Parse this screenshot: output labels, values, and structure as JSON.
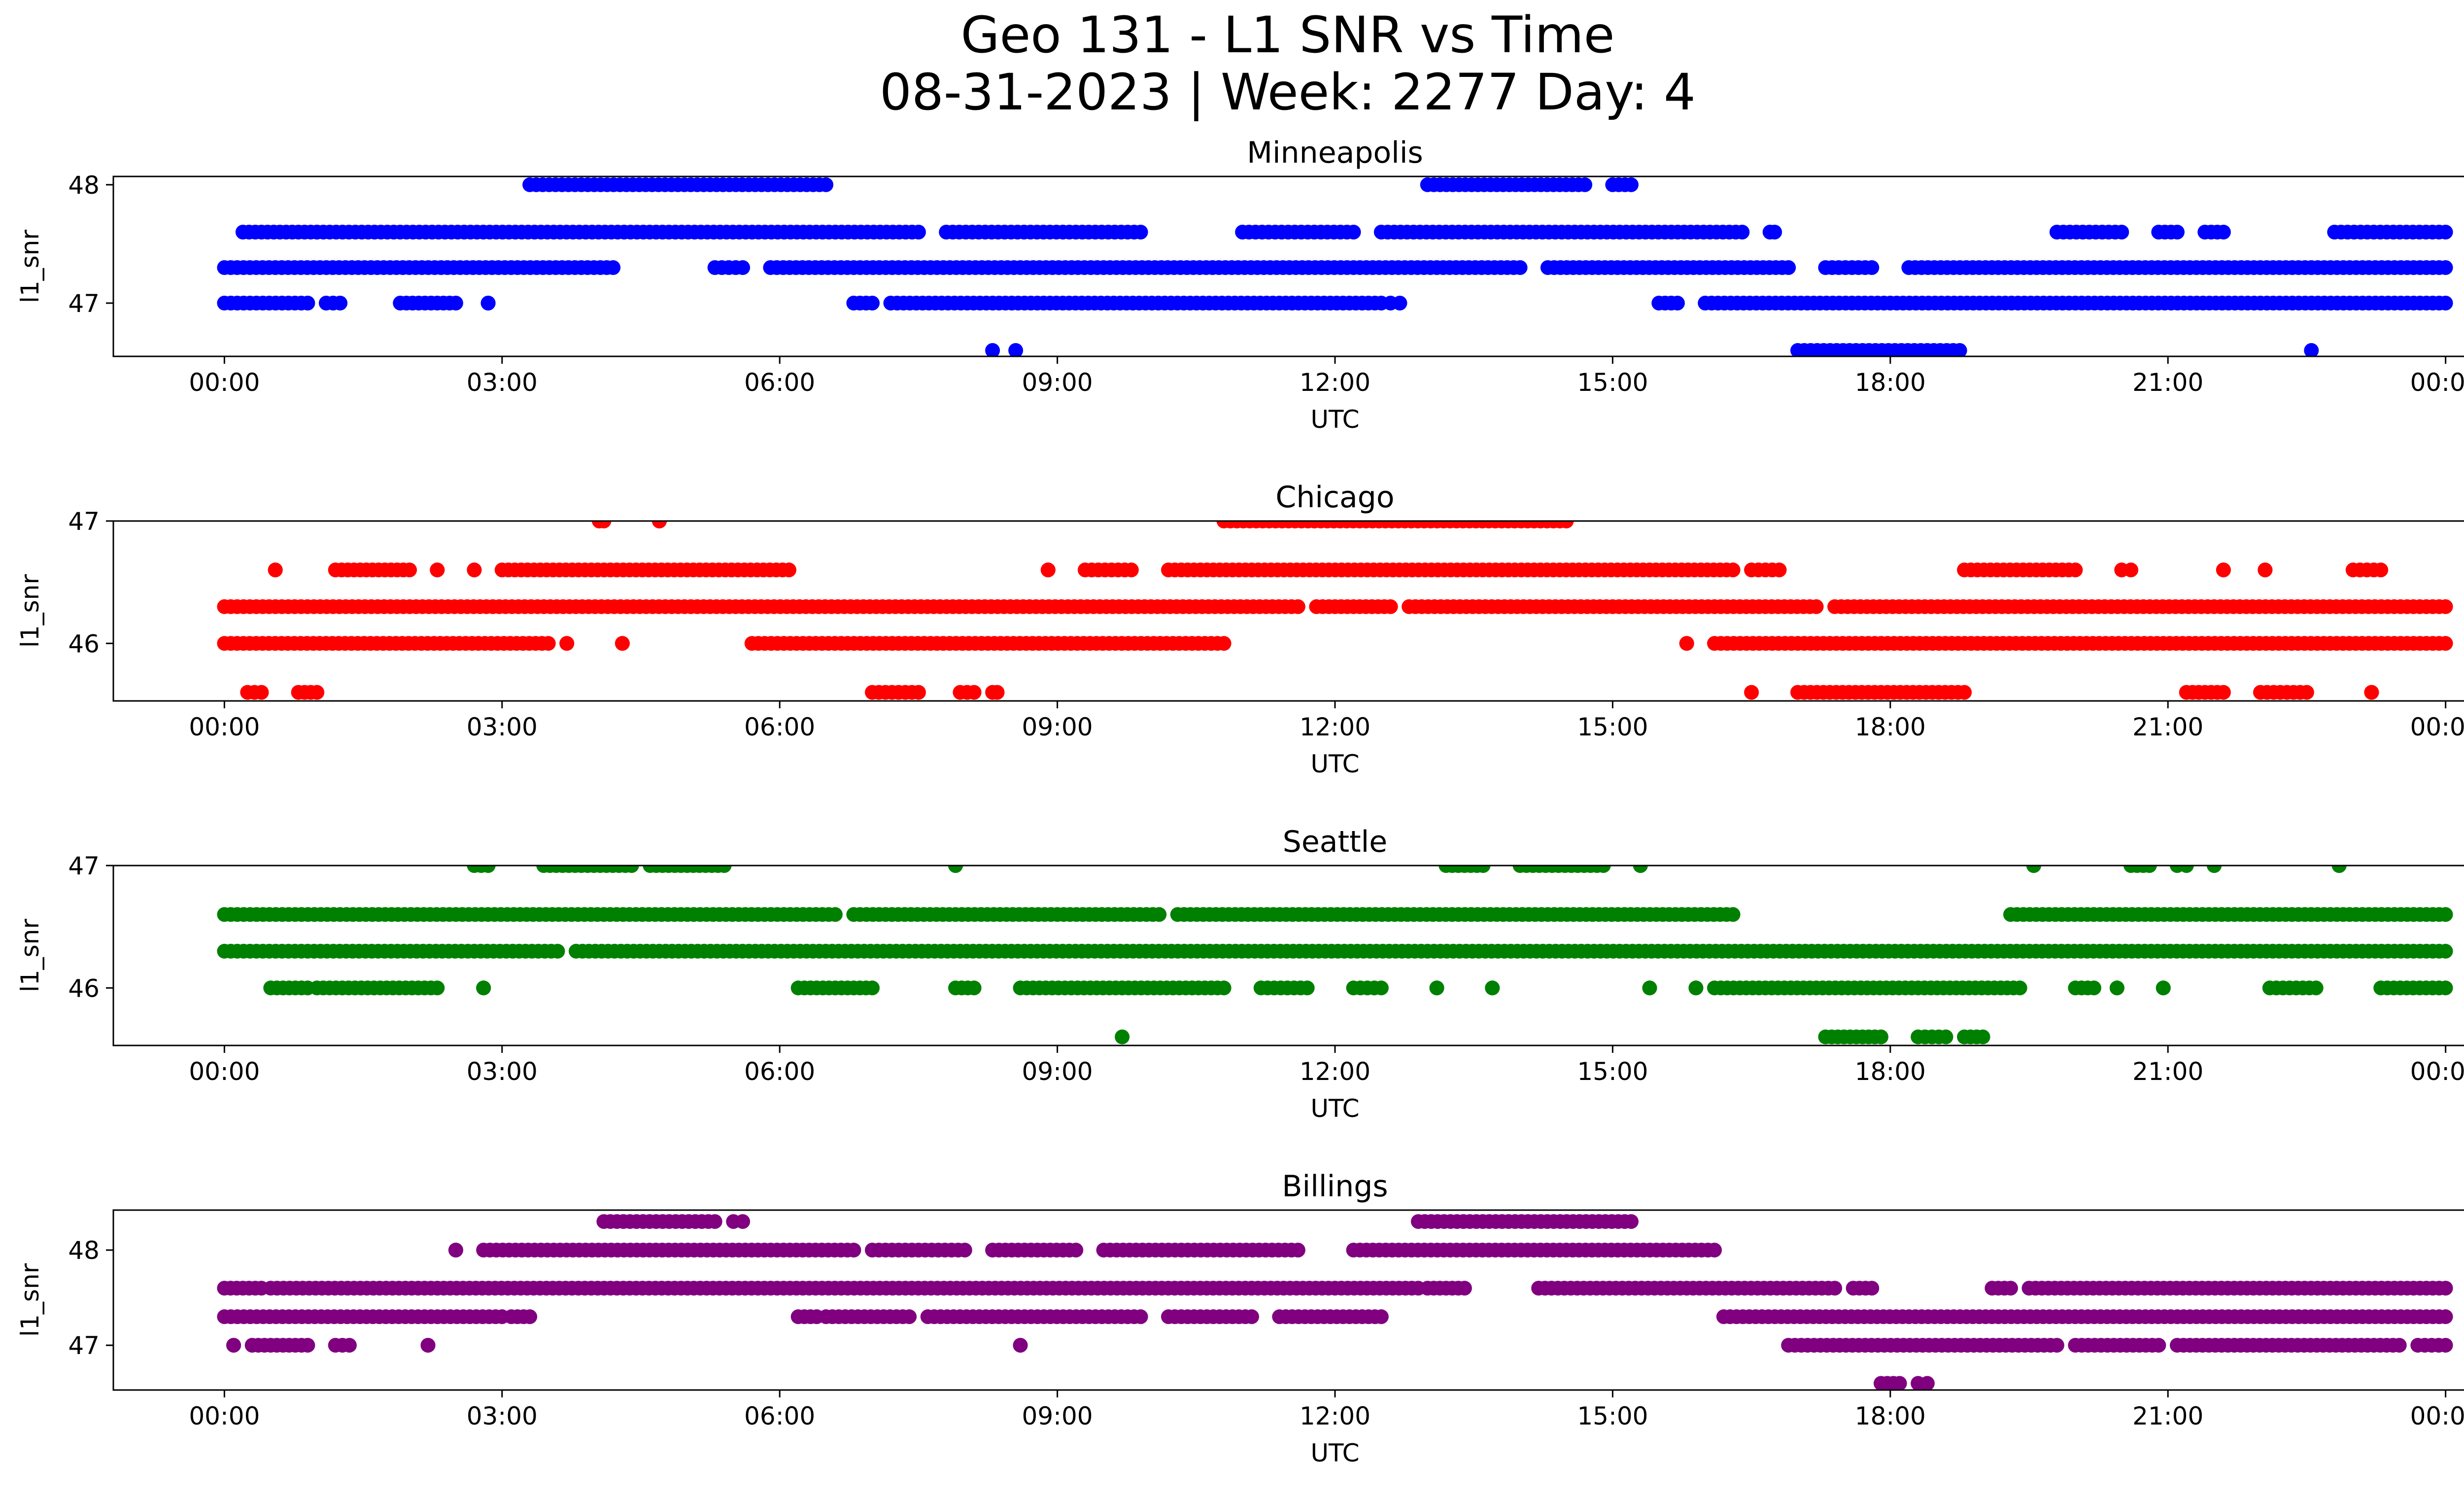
{
  "figure": {
    "title_line1": "Geo 131 - L1 SNR vs Time",
    "title_line2": "08-31-2023 | Week: 2277 Day: 4"
  },
  "chart_data": [
    {
      "type": "scatter",
      "title": "Minneapolis",
      "xlabel": "UTC",
      "ylabel": "l1_snr",
      "color": "#0000ff",
      "xlim_hours": [
        -1.2,
        25.2
      ],
      "ylim": [
        46.55,
        48.07
      ],
      "xticks": [
        {
          "h": 0,
          "label": "00:00"
        },
        {
          "h": 3,
          "label": "03:00"
        },
        {
          "h": 6,
          "label": "06:00"
        },
        {
          "h": 9,
          "label": "09:00"
        },
        {
          "h": 12,
          "label": "12:00"
        },
        {
          "h": 15,
          "label": "15:00"
        },
        {
          "h": 18,
          "label": "18:00"
        },
        {
          "h": 21,
          "label": "21:00"
        },
        {
          "h": 24,
          "label": "00:00"
        }
      ],
      "yticks": [
        {
          "v": 47,
          "label": "47"
        },
        {
          "v": 48,
          "label": "48"
        }
      ],
      "segments": [
        {
          "y": 48.0,
          "start": 3.3,
          "end": 6.5
        },
        {
          "y": 48.0,
          "start": 13.0,
          "end": 14.7
        },
        {
          "y": 48.0,
          "start": 15.0,
          "end": 15.2
        },
        {
          "y": 47.6,
          "start": 0.2,
          "end": 1.0
        },
        {
          "y": 47.6,
          "start": 1.0,
          "end": 7.5
        },
        {
          "y": 47.6,
          "start": 7.8,
          "end": 9.9
        },
        {
          "y": 47.6,
          "start": 11.0,
          "end": 12.2
        },
        {
          "y": 47.6,
          "start": 12.5,
          "end": 16.4
        },
        {
          "y": 47.6,
          "start": 16.7,
          "end": 16.75
        },
        {
          "y": 47.6,
          "start": 19.8,
          "end": 20.5
        },
        {
          "y": 47.6,
          "start": 20.9,
          "end": 21.1
        },
        {
          "y": 47.6,
          "start": 21.4,
          "end": 21.6
        },
        {
          "y": 47.6,
          "start": 22.8,
          "end": 24.0
        },
        {
          "y": 47.3,
          "start": 0.0,
          "end": 4.2
        },
        {
          "y": 47.3,
          "start": 5.3,
          "end": 5.6
        },
        {
          "y": 47.3,
          "start": 5.9,
          "end": 14.0
        },
        {
          "y": 47.3,
          "start": 14.3,
          "end": 16.9
        },
        {
          "y": 47.3,
          "start": 17.3,
          "end": 17.8
        },
        {
          "y": 47.3,
          "start": 18.2,
          "end": 24.0
        },
        {
          "y": 47.0,
          "start": 0.0,
          "end": 0.9
        },
        {
          "y": 47.0,
          "start": 1.1,
          "end": 1.25
        },
        {
          "y": 47.0,
          "start": 1.9,
          "end": 2.5
        },
        {
          "y": 47.0,
          "start": 2.85,
          "end": 2.85
        },
        {
          "y": 47.0,
          "start": 6.8,
          "end": 7.0
        },
        {
          "y": 47.0,
          "start": 7.2,
          "end": 12.5
        },
        {
          "y": 47.0,
          "start": 12.6,
          "end": 12.7
        },
        {
          "y": 47.0,
          "start": 15.5,
          "end": 15.7
        },
        {
          "y": 47.0,
          "start": 16.0,
          "end": 24.0
        },
        {
          "y": 46.6,
          "start": 17.0,
          "end": 18.75
        }
      ],
      "points": [
        {
          "x": 8.3,
          "y": 46.6
        },
        {
          "x": 8.55,
          "y": 46.6
        },
        {
          "x": 22.55,
          "y": 46.6
        }
      ]
    },
    {
      "type": "scatter",
      "title": "Chicago",
      "xlabel": "UTC",
      "ylabel": "l1_snr",
      "color": "#ff0000",
      "xlim_hours": [
        -1.2,
        25.2
      ],
      "ylim": [
        45.53,
        47.0
      ],
      "xticks": [
        {
          "h": 0,
          "label": "00:00"
        },
        {
          "h": 3,
          "label": "03:00"
        },
        {
          "h": 6,
          "label": "06:00"
        },
        {
          "h": 9,
          "label": "09:00"
        },
        {
          "h": 12,
          "label": "12:00"
        },
        {
          "h": 15,
          "label": "15:00"
        },
        {
          "h": 18,
          "label": "18:00"
        },
        {
          "h": 21,
          "label": "21:00"
        },
        {
          "h": 24,
          "label": "00:00"
        }
      ],
      "yticks": [
        {
          "v": 46,
          "label": "46"
        },
        {
          "v": 47,
          "label": "47"
        }
      ],
      "segments": [
        {
          "y": 47.0,
          "start": 4.05,
          "end": 4.1
        },
        {
          "y": 47.0,
          "start": 4.7,
          "end": 4.7
        },
        {
          "y": 47.0,
          "start": 10.8,
          "end": 14.5
        },
        {
          "y": 46.6,
          "start": 0.55,
          "end": 0.55
        },
        {
          "y": 46.6,
          "start": 1.2,
          "end": 2.0
        },
        {
          "y": 46.6,
          "start": 2.3,
          "end": 2.3
        },
        {
          "y": 46.6,
          "start": 2.7,
          "end": 2.7
        },
        {
          "y": 46.6,
          "start": 3.0,
          "end": 6.1
        },
        {
          "y": 46.6,
          "start": 8.9,
          "end": 8.9
        },
        {
          "y": 46.6,
          "start": 9.3,
          "end": 9.8
        },
        {
          "y": 46.6,
          "start": 10.2,
          "end": 16.3
        },
        {
          "y": 46.6,
          "start": 16.5,
          "end": 16.8
        },
        {
          "y": 46.6,
          "start": 18.8,
          "end": 20.0
        },
        {
          "y": 46.6,
          "start": 20.5,
          "end": 20.6
        },
        {
          "y": 46.6,
          "start": 21.6,
          "end": 21.6
        },
        {
          "y": 46.6,
          "start": 22.05,
          "end": 22.05
        },
        {
          "y": 46.6,
          "start": 23.0,
          "end": 23.3
        },
        {
          "y": 46.3,
          "start": 0.0,
          "end": 11.6
        },
        {
          "y": 46.3,
          "start": 11.8,
          "end": 12.6
        },
        {
          "y": 46.3,
          "start": 12.8,
          "end": 17.2
        },
        {
          "y": 46.3,
          "start": 17.4,
          "end": 24.0
        },
        {
          "y": 46.0,
          "start": 0.0,
          "end": 3.5
        },
        {
          "y": 46.0,
          "start": 3.7,
          "end": 3.7
        },
        {
          "y": 46.0,
          "start": 4.3,
          "end": 4.3
        },
        {
          "y": 46.0,
          "start": 5.7,
          "end": 10.8
        },
        {
          "y": 46.0,
          "start": 15.8,
          "end": 15.8
        },
        {
          "y": 46.0,
          "start": 16.1,
          "end": 24.0
        },
        {
          "y": 45.6,
          "start": 0.25,
          "end": 0.4
        },
        {
          "y": 45.6,
          "start": 0.8,
          "end": 1.0
        },
        {
          "y": 45.6,
          "start": 7.0,
          "end": 7.5
        },
        {
          "y": 45.6,
          "start": 7.95,
          "end": 8.1
        },
        {
          "y": 45.6,
          "start": 8.3,
          "end": 8.35
        },
        {
          "y": 45.6,
          "start": 17.0,
          "end": 18.8
        },
        {
          "y": 45.6,
          "start": 21.2,
          "end": 21.6
        },
        {
          "y": 45.6,
          "start": 22.0,
          "end": 22.5
        },
        {
          "y": 45.6,
          "start": 23.2,
          "end": 23.2
        }
      ],
      "points": [
        {
          "x": 16.5,
          "y": 45.6
        }
      ]
    },
    {
      "type": "scatter",
      "title": "Seattle",
      "xlabel": "UTC",
      "ylabel": "l1_snr",
      "color": "#008000",
      "xlim_hours": [
        -1.2,
        25.2
      ],
      "ylim": [
        45.53,
        47.0
      ],
      "xticks": [
        {
          "h": 0,
          "label": "00:00"
        },
        {
          "h": 3,
          "label": "03:00"
        },
        {
          "h": 6,
          "label": "06:00"
        },
        {
          "h": 9,
          "label": "09:00"
        },
        {
          "h": 12,
          "label": "12:00"
        },
        {
          "h": 15,
          "label": "15:00"
        },
        {
          "h": 18,
          "label": "18:00"
        },
        {
          "h": 21,
          "label": "21:00"
        },
        {
          "h": 24,
          "label": "00:00"
        }
      ],
      "yticks": [
        {
          "v": 46,
          "label": "46"
        },
        {
          "v": 47,
          "label": "47"
        }
      ],
      "segments": [
        {
          "y": 47.0,
          "start": 2.7,
          "end": 2.85
        },
        {
          "y": 47.0,
          "start": 3.45,
          "end": 4.4
        },
        {
          "y": 47.0,
          "start": 4.6,
          "end": 5.4
        },
        {
          "y": 47.0,
          "start": 7.9,
          "end": 7.9
        },
        {
          "y": 47.0,
          "start": 13.2,
          "end": 13.6
        },
        {
          "y": 47.0,
          "start": 14.0,
          "end": 14.9
        },
        {
          "y": 47.0,
          "start": 15.3,
          "end": 15.3
        },
        {
          "y": 47.0,
          "start": 19.55,
          "end": 19.55
        },
        {
          "y": 47.0,
          "start": 20.6,
          "end": 20.8
        },
        {
          "y": 47.0,
          "start": 21.1,
          "end": 21.2
        },
        {
          "y": 47.0,
          "start": 21.5,
          "end": 21.5
        },
        {
          "y": 47.0,
          "start": 22.85,
          "end": 22.85
        },
        {
          "y": 46.6,
          "start": 0.0,
          "end": 6.6
        },
        {
          "y": 46.6,
          "start": 6.8,
          "end": 10.1
        },
        {
          "y": 46.6,
          "start": 10.3,
          "end": 16.3
        },
        {
          "y": 46.6,
          "start": 19.3,
          "end": 24.0
        },
        {
          "y": 46.3,
          "start": 0.0,
          "end": 3.6
        },
        {
          "y": 46.3,
          "start": 3.8,
          "end": 24.0
        },
        {
          "y": 46.0,
          "start": 0.5,
          "end": 0.9
        },
        {
          "y": 46.0,
          "start": 1.0,
          "end": 2.3
        },
        {
          "y": 46.0,
          "start": 2.8,
          "end": 2.8
        },
        {
          "y": 46.0,
          "start": 6.2,
          "end": 7.0
        },
        {
          "y": 46.0,
          "start": 7.9,
          "end": 8.1
        },
        {
          "y": 46.0,
          "start": 8.6,
          "end": 10.8
        },
        {
          "y": 46.0,
          "start": 11.2,
          "end": 11.7
        },
        {
          "y": 46.0,
          "start": 12.2,
          "end": 12.5
        },
        {
          "y": 46.0,
          "start": 13.1,
          "end": 13.1
        },
        {
          "y": 46.0,
          "start": 13.7,
          "end": 13.7
        },
        {
          "y": 46.0,
          "start": 15.4,
          "end": 15.4
        },
        {
          "y": 46.0,
          "start": 15.9,
          "end": 15.9
        },
        {
          "y": 46.0,
          "start": 16.1,
          "end": 19.4
        },
        {
          "y": 46.0,
          "start": 20.0,
          "end": 20.2
        },
        {
          "y": 46.0,
          "start": 20.45,
          "end": 20.45
        },
        {
          "y": 46.0,
          "start": 20.95,
          "end": 20.95
        },
        {
          "y": 46.0,
          "start": 22.1,
          "end": 22.6
        },
        {
          "y": 46.0,
          "start": 23.3,
          "end": 24.0
        },
        {
          "y": 45.6,
          "start": 17.3,
          "end": 17.9
        },
        {
          "y": 45.6,
          "start": 18.3,
          "end": 18.6
        },
        {
          "y": 45.6,
          "start": 18.8,
          "end": 19.0
        }
      ],
      "points": [
        {
          "x": 9.7,
          "y": 45.6
        }
      ]
    },
    {
      "type": "scatter",
      "title": "Billings",
      "xlabel": "UTC",
      "ylabel": "l1_snr",
      "color": "#800080",
      "xlim_hours": [
        -1.2,
        25.2
      ],
      "ylim": [
        46.53,
        48.42
      ],
      "xticks": [
        {
          "h": 0,
          "label": "00:00"
        },
        {
          "h": 3,
          "label": "03:00"
        },
        {
          "h": 6,
          "label": "06:00"
        },
        {
          "h": 9,
          "label": "09:00"
        },
        {
          "h": 12,
          "label": "12:00"
        },
        {
          "h": 15,
          "label": "15:00"
        },
        {
          "h": 18,
          "label": "18:00"
        },
        {
          "h": 21,
          "label": "21:00"
        },
        {
          "h": 24,
          "label": "00:00"
        }
      ],
      "yticks": [
        {
          "v": 47,
          "label": "47"
        },
        {
          "v": 48,
          "label": "48"
        }
      ],
      "segments": [
        {
          "y": 48.3,
          "start": 4.1,
          "end": 5.3
        },
        {
          "y": 48.3,
          "start": 5.5,
          "end": 5.6
        },
        {
          "y": 48.3,
          "start": 12.9,
          "end": 15.2
        },
        {
          "y": 48.0,
          "start": 2.5,
          "end": 2.5
        },
        {
          "y": 48.0,
          "start": 2.8,
          "end": 6.8
        },
        {
          "y": 48.0,
          "start": 7.0,
          "end": 8.0
        },
        {
          "y": 48.0,
          "start": 8.3,
          "end": 9.2
        },
        {
          "y": 48.0,
          "start": 9.5,
          "end": 11.6
        },
        {
          "y": 48.0,
          "start": 12.2,
          "end": 16.1
        },
        {
          "y": 47.6,
          "start": 0.0,
          "end": 0.4
        },
        {
          "y": 47.6,
          "start": 0.5,
          "end": 12.9
        },
        {
          "y": 47.6,
          "start": 13.0,
          "end": 13.4
        },
        {
          "y": 47.6,
          "start": 14.2,
          "end": 17.4
        },
        {
          "y": 47.6,
          "start": 17.6,
          "end": 17.8
        },
        {
          "y": 47.6,
          "start": 19.1,
          "end": 19.3
        },
        {
          "y": 47.6,
          "start": 19.5,
          "end": 24.0
        },
        {
          "y": 47.3,
          "start": 0.0,
          "end": 3.0
        },
        {
          "y": 47.3,
          "start": 3.1,
          "end": 3.3
        },
        {
          "y": 47.3,
          "start": 6.2,
          "end": 6.4
        },
        {
          "y": 47.3,
          "start": 6.5,
          "end": 7.4
        },
        {
          "y": 47.3,
          "start": 7.6,
          "end": 9.9
        },
        {
          "y": 47.3,
          "start": 10.2,
          "end": 11.1
        },
        {
          "y": 47.3,
          "start": 11.4,
          "end": 12.5
        },
        {
          "y": 47.3,
          "start": 16.2,
          "end": 24.0
        },
        {
          "y": 47.0,
          "start": 0.1,
          "end": 0.1
        },
        {
          "y": 47.0,
          "start": 0.3,
          "end": 0.9
        },
        {
          "y": 47.0,
          "start": 1.2,
          "end": 1.35
        },
        {
          "y": 47.0,
          "start": 2.2,
          "end": 2.2
        },
        {
          "y": 47.0,
          "start": 8.6,
          "end": 8.6
        },
        {
          "y": 47.0,
          "start": 16.9,
          "end": 19.8
        },
        {
          "y": 47.0,
          "start": 20.0,
          "end": 20.9
        },
        {
          "y": 47.0,
          "start": 21.1,
          "end": 23.5
        },
        {
          "y": 47.0,
          "start": 23.7,
          "end": 24.0
        },
        {
          "y": 46.6,
          "start": 17.9,
          "end": 18.1
        },
        {
          "y": 46.6,
          "start": 18.3,
          "end": 18.4
        }
      ],
      "points": []
    }
  ]
}
